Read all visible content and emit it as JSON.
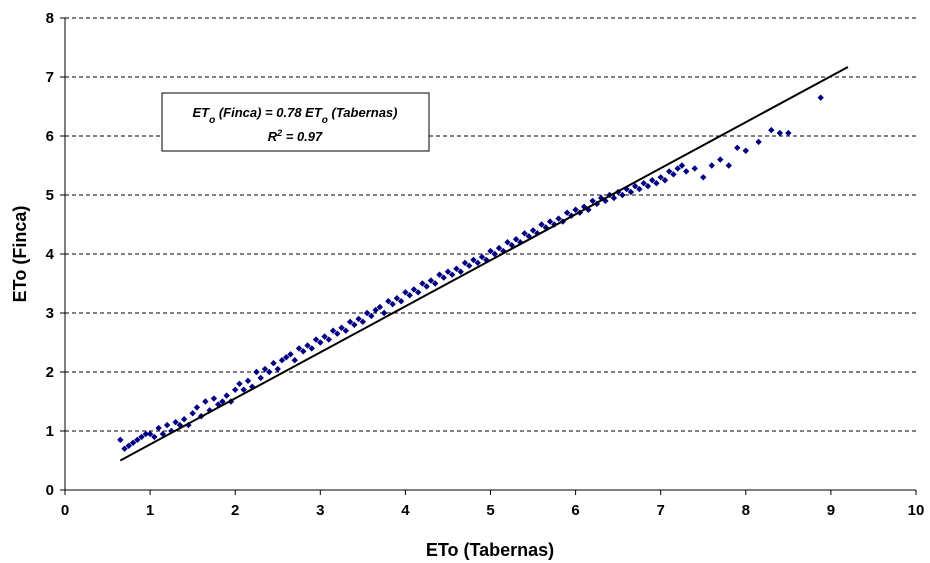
{
  "chart_data": {
    "type": "scatter",
    "xlabel": "ETo (Tabernas)",
    "ylabel": "ETo (Finca)",
    "xlim": [
      0,
      10
    ],
    "ylim": [
      0,
      8
    ],
    "x_ticks": [
      "0",
      "1",
      "2",
      "3",
      "4",
      "5",
      "6",
      "7",
      "8",
      "9",
      "10"
    ],
    "y_ticks": [
      "0",
      "1",
      "2",
      "3",
      "4",
      "5",
      "6",
      "7",
      "8"
    ],
    "grid": "horizontal-dashed",
    "marker_color": "#000080",
    "line_color": "#000000",
    "annotation": {
      "equation_prefix": "ET",
      "equation_sub1": "o",
      "equation_mid": " (Finca) = 0.78 ET",
      "equation_sub2": "o",
      "equation_suffix": " (Tabernas)",
      "r2_prefix": "R",
      "r2_sup": "2",
      "r2_suffix": " = 0.97"
    },
    "trendline": {
      "x": [
        0.65,
        9.2
      ],
      "y": [
        0.5,
        7.17
      ]
    },
    "series": [
      {
        "x": [
          0.65,
          0.7,
          0.75,
          0.8,
          0.85,
          0.9,
          0.95,
          1.0,
          1.05,
          1.1,
          1.15,
          1.2,
          1.25,
          1.3,
          1.35,
          1.4,
          1.45,
          1.5,
          1.55,
          1.6,
          1.65,
          1.7,
          1.75,
          1.8,
          1.85,
          1.9,
          1.95,
          2.0,
          2.05,
          2.1,
          2.15,
          2.2,
          2.25,
          2.3,
          2.35,
          2.4,
          2.45,
          2.5,
          2.55,
          2.6,
          2.65,
          2.7,
          2.75,
          2.8,
          2.85,
          2.9,
          2.95,
          3.0,
          3.05,
          3.1,
          3.15,
          3.2,
          3.25,
          3.3,
          3.35,
          3.4,
          3.45,
          3.5,
          3.55,
          3.6,
          3.65,
          3.7,
          3.75,
          3.8,
          3.85,
          3.9,
          3.95,
          4.0,
          4.05,
          4.1,
          4.15,
          4.2,
          4.25,
          4.3,
          4.35,
          4.4,
          4.45,
          4.5,
          4.55,
          4.6,
          4.65,
          4.7,
          4.75,
          4.8,
          4.85,
          4.9,
          4.95,
          5.0,
          5.05,
          5.1,
          5.15,
          5.2,
          5.25,
          5.3,
          5.35,
          5.4,
          5.45,
          5.5,
          5.55,
          5.6,
          5.65,
          5.7,
          5.75,
          5.8,
          5.85,
          5.9,
          5.95,
          6.0,
          6.05,
          6.1,
          6.15,
          6.2,
          6.25,
          6.3,
          6.35,
          6.4,
          6.45,
          6.5,
          6.55,
          6.6,
          6.65,
          6.7,
          6.75,
          6.8,
          6.85,
          6.9,
          6.95,
          7.0,
          7.05,
          7.1,
          7.15,
          7.2,
          7.25,
          7.3,
          7.4,
          7.5,
          7.6,
          7.7,
          7.8,
          7.9,
          8.0,
          8.15,
          8.3,
          8.4,
          8.5,
          8.88
        ],
        "y": [
          0.85,
          0.7,
          0.75,
          0.8,
          0.85,
          0.9,
          0.95,
          0.95,
          0.9,
          1.05,
          0.95,
          1.1,
          1.0,
          1.15,
          1.1,
          1.2,
          1.1,
          1.3,
          1.4,
          1.25,
          1.5,
          1.35,
          1.55,
          1.45,
          1.5,
          1.6,
          1.5,
          1.7,
          1.8,
          1.7,
          1.85,
          1.75,
          2.0,
          1.9,
          2.05,
          2.0,
          2.15,
          2.05,
          2.2,
          2.25,
          2.3,
          2.2,
          2.4,
          2.35,
          2.45,
          2.4,
          2.55,
          2.5,
          2.6,
          2.55,
          2.7,
          2.65,
          2.75,
          2.7,
          2.85,
          2.8,
          2.9,
          2.85,
          3.0,
          2.95,
          3.05,
          3.1,
          3.0,
          3.2,
          3.15,
          3.25,
          3.2,
          3.35,
          3.3,
          3.4,
          3.35,
          3.5,
          3.45,
          3.55,
          3.5,
          3.65,
          3.6,
          3.7,
          3.65,
          3.75,
          3.7,
          3.85,
          3.8,
          3.9,
          3.85,
          3.95,
          3.9,
          4.05,
          4.0,
          4.1,
          4.05,
          4.2,
          4.15,
          4.25,
          4.2,
          4.35,
          4.3,
          4.4,
          4.35,
          4.5,
          4.45,
          4.55,
          4.5,
          4.6,
          4.55,
          4.7,
          4.65,
          4.75,
          4.7,
          4.8,
          4.75,
          4.9,
          4.85,
          4.95,
          4.9,
          5.0,
          4.95,
          5.05,
          5.0,
          5.1,
          5.05,
          5.15,
          5.1,
          5.2,
          5.15,
          5.25,
          5.2,
          5.3,
          5.25,
          5.4,
          5.35,
          5.45,
          5.5,
          5.4,
          5.45,
          5.3,
          5.5,
          5.6,
          5.5,
          5.8,
          5.75,
          5.9,
          6.1,
          6.05,
          6.05,
          6.65
        ]
      }
    ]
  }
}
